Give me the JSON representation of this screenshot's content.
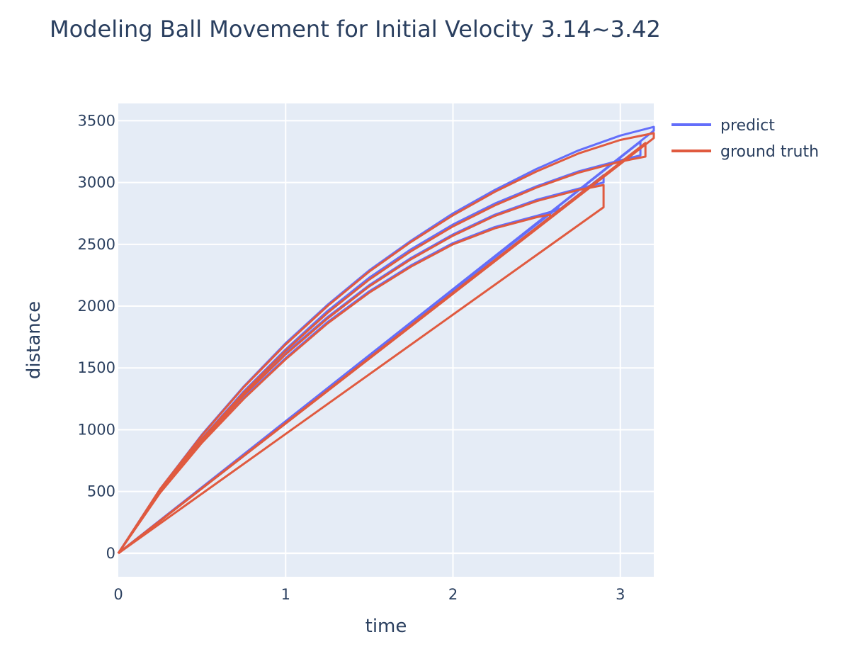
{
  "chart_data": {
    "type": "line",
    "title": "Modeling Ball Movement for Initial Velocity 3.14~3.42",
    "xlabel": "time",
    "ylabel": "distance",
    "xlim": [
      0,
      3.2
    ],
    "ylim": [
      -190,
      3640
    ],
    "x_ticks": [
      0,
      1,
      2,
      3
    ],
    "y_ticks": [
      0,
      500,
      1000,
      1500,
      2000,
      2500,
      3000,
      3500
    ],
    "grid": true,
    "legend_position": "top-right",
    "colors": {
      "predict": "#636efa",
      "ground_truth": "#e05a3f",
      "plot_bg": "#e5ecf6",
      "grid": "#ffffff",
      "text": "#2a3f5f"
    },
    "series": [
      {
        "name": "predict",
        "color": "#636efa",
        "samples": [
          {
            "id": "p1",
            "points": [
              [
                0,
                0
              ],
              [
                0.25,
                520
              ],
              [
                0.5,
                960
              ],
              [
                0.75,
                1350
              ],
              [
                1.0,
                1700
              ],
              [
                1.25,
                2010
              ],
              [
                1.5,
                2290
              ],
              [
                1.75,
                2530
              ],
              [
                2.0,
                2750
              ],
              [
                2.25,
                2940
              ],
              [
                2.5,
                3110
              ],
              [
                2.75,
                3260
              ],
              [
                3.0,
                3380
              ],
              [
                3.2,
                3450
              ],
              [
                3.2,
                3420
              ],
              [
                0,
                0
              ]
            ]
          },
          {
            "id": "p2",
            "points": [
              [
                0,
                0
              ],
              [
                0.25,
                505
              ],
              [
                0.5,
                930
              ],
              [
                0.75,
                1310
              ],
              [
                1.0,
                1650
              ],
              [
                1.25,
                1960
              ],
              [
                1.5,
                2230
              ],
              [
                1.75,
                2460
              ],
              [
                2.0,
                2660
              ],
              [
                2.25,
                2830
              ],
              [
                2.5,
                2970
              ],
              [
                2.75,
                3090
              ],
              [
                3.0,
                3180
              ],
              [
                3.12,
                3220
              ],
              [
                3.12,
                3330
              ],
              [
                0,
                0
              ]
            ]
          },
          {
            "id": "p3",
            "points": [
              [
                0,
                0
              ],
              [
                0.25,
                495
              ],
              [
                0.5,
                900
              ],
              [
                0.75,
                1260
              ],
              [
                1.0,
                1580
              ],
              [
                1.25,
                1870
              ],
              [
                1.5,
                2120
              ],
              [
                1.75,
                2330
              ],
              [
                2.0,
                2510
              ],
              [
                2.25,
                2640
              ],
              [
                2.5,
                2730
              ],
              [
                2.63,
                2780
              ],
              [
                2.63,
                2800
              ],
              [
                0,
                0
              ]
            ]
          },
          {
            "id": "p4",
            "points": [
              [
                0,
                0
              ],
              [
                0.25,
                500
              ],
              [
                0.5,
                915
              ],
              [
                0.75,
                1290
              ],
              [
                1.0,
                1620
              ],
              [
                1.25,
                1910
              ],
              [
                1.5,
                2170
              ],
              [
                1.75,
                2390
              ],
              [
                2.0,
                2580
              ],
              [
                2.25,
                2740
              ],
              [
                2.5,
                2860
              ],
              [
                2.75,
                2950
              ],
              [
                2.9,
                3000
              ],
              [
                2.9,
                3060
              ],
              [
                0,
                0
              ]
            ]
          }
        ]
      },
      {
        "name": "ground truth",
        "color": "#e05a3f",
        "samples": [
          {
            "id": "g1",
            "points": [
              [
                0,
                0
              ],
              [
                0.25,
                520
              ],
              [
                0.5,
                955
              ],
              [
                0.75,
                1345
              ],
              [
                1.0,
                1690
              ],
              [
                1.25,
                2000
              ],
              [
                1.5,
                2280
              ],
              [
                1.75,
                2520
              ],
              [
                2.0,
                2735
              ],
              [
                2.25,
                2925
              ],
              [
                2.5,
                3090
              ],
              [
                2.75,
                3235
              ],
              [
                3.0,
                3345
              ],
              [
                3.2,
                3400
              ],
              [
                3.2,
                3360
              ],
              [
                0,
                0
              ]
            ]
          },
          {
            "id": "g2",
            "points": [
              [
                0,
                0
              ],
              [
                0.25,
                505
              ],
              [
                0.5,
                925
              ],
              [
                0.75,
                1300
              ],
              [
                1.0,
                1640
              ],
              [
                1.25,
                1945
              ],
              [
                1.5,
                2215
              ],
              [
                1.75,
                2445
              ],
              [
                2.0,
                2645
              ],
              [
                2.25,
                2815
              ],
              [
                2.5,
                2960
              ],
              [
                2.75,
                3080
              ],
              [
                3.0,
                3170
              ],
              [
                3.15,
                3210
              ],
              [
                3.15,
                3320
              ],
              [
                0,
                0
              ]
            ]
          },
          {
            "id": "g3",
            "points": [
              [
                0,
                0
              ],
              [
                0.25,
                490
              ],
              [
                0.5,
                895
              ],
              [
                0.75,
                1250
              ],
              [
                1.0,
                1570
              ],
              [
                1.25,
                1860
              ],
              [
                1.5,
                2110
              ],
              [
                1.75,
                2320
              ],
              [
                2.0,
                2500
              ],
              [
                2.25,
                2630
              ],
              [
                2.5,
                2720
              ],
              [
                2.58,
                2740
              ],
              [
                2.58,
                2720
              ],
              [
                0,
                0
              ]
            ]
          },
          {
            "id": "g4",
            "points": [
              [
                0,
                0
              ],
              [
                0.25,
                500
              ],
              [
                0.5,
                910
              ],
              [
                0.75,
                1280
              ],
              [
                1.0,
                1610
              ],
              [
                1.25,
                1900
              ],
              [
                1.5,
                2160
              ],
              [
                1.75,
                2380
              ],
              [
                2.0,
                2570
              ],
              [
                2.25,
                2730
              ],
              [
                2.5,
                2850
              ],
              [
                2.75,
                2940
              ],
              [
                2.9,
                2980
              ],
              [
                2.9,
                2800
              ],
              [
                0,
                0
              ]
            ]
          }
        ]
      }
    ]
  }
}
